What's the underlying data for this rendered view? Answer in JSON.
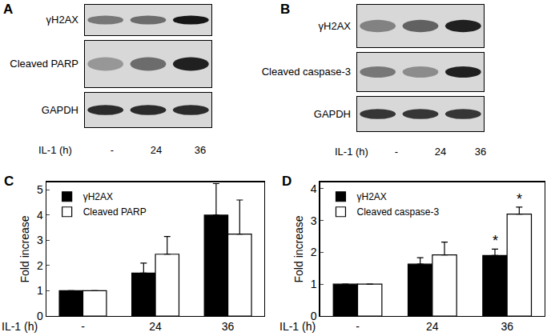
{
  "chart_data": [
    {
      "type": "bar",
      "panel": "C",
      "ylabel": "Fold increase",
      "xlabel": "IL-1 (h)",
      "categories": [
        "-",
        "24",
        "36"
      ],
      "series": [
        {
          "name": "γH2AX",
          "color": "#000000",
          "values": [
            1,
            1.7,
            4.0
          ],
          "errors": [
            0,
            0.4,
            1.25
          ]
        },
        {
          "name": "Cleaved PARP",
          "color": "#ffffff",
          "values": [
            1,
            2.45,
            3.25
          ],
          "errors": [
            0,
            0.7,
            1.35
          ]
        }
      ],
      "ylim": [
        0,
        5.3
      ],
      "yticks": [
        0,
        1,
        2,
        3,
        4,
        5
      ],
      "legend": "upper left"
    },
    {
      "type": "bar",
      "panel": "D",
      "ylabel": "Fold increase",
      "xlabel": "IL-1 (h)",
      "categories": [
        "-",
        "24",
        "36"
      ],
      "series": [
        {
          "name": "γH2AX",
          "color": "#000000",
          "values": [
            1,
            1.63,
            1.9
          ],
          "errors": [
            0,
            0.2,
            0.2
          ]
        },
        {
          "name": "Cleaved caspase-3",
          "color": "#ffffff",
          "values": [
            1,
            1.92,
            3.2
          ],
          "errors": [
            0,
            0.4,
            0.22
          ]
        }
      ],
      "ylim": [
        0,
        4.2
      ],
      "yticks": [
        0,
        1,
        2,
        3,
        4
      ],
      "legend": "upper left",
      "annotations": [
        {
          "text": "*",
          "series": 0,
          "category": 2
        },
        {
          "text": "*",
          "series": 1,
          "category": 2
        }
      ]
    }
  ],
  "blots": [
    {
      "panel": "A",
      "lane_label": "IL-1 (h)",
      "lanes": [
        "-",
        "24",
        "36"
      ],
      "rows": [
        {
          "label": "γH2AX",
          "band_intensity": [
            0.45,
            0.5,
            0.9
          ]
        },
        {
          "label": "Cleaved PARP",
          "band_intensity": [
            0.3,
            0.5,
            0.85
          ]
        },
        {
          "label": "GAPDH",
          "band_intensity": [
            0.8,
            0.8,
            0.8
          ]
        }
      ]
    },
    {
      "panel": "B",
      "lane_label": "IL-1 (h)",
      "lanes": [
        "-",
        "24",
        "36"
      ],
      "rows": [
        {
          "label": "γH2AX",
          "band_intensity": [
            0.4,
            0.55,
            0.85
          ]
        },
        {
          "label": "Cleaved caspase-3",
          "band_intensity": [
            0.45,
            0.35,
            0.85
          ]
        },
        {
          "label": "GAPDH",
          "band_intensity": [
            0.75,
            0.75,
            0.75
          ]
        }
      ]
    }
  ]
}
